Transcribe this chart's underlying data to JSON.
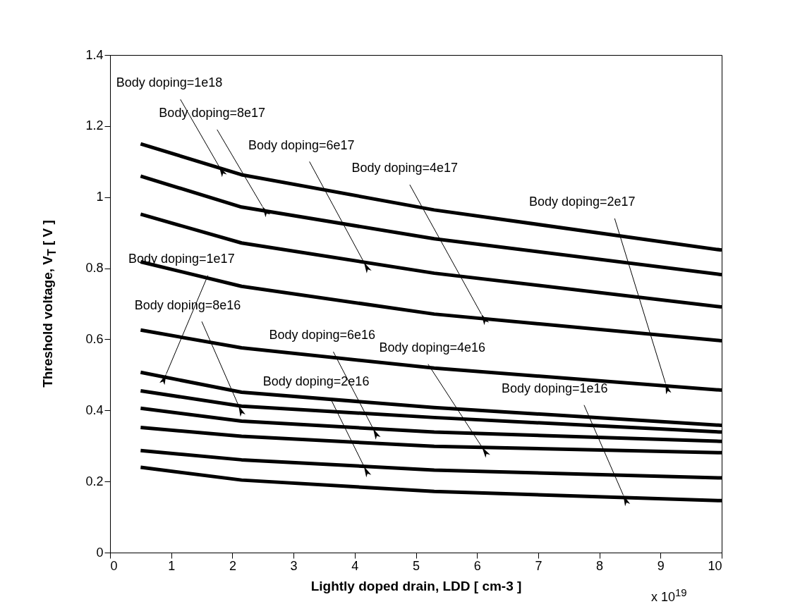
{
  "chart_data": {
    "type": "line",
    "xlabel": "Lightly doped drain, LDD [ cm-3 ]",
    "ylabel": "Threshold voltage, V$_{T}$  [ V ]",
    "x": [
      0.5,
      2.15,
      5.3,
      10
    ],
    "series": [
      {
        "color": "#000000",
        "values": [
          1.15,
          1.063,
          0.964,
          0.851
        ]
      },
      {
        "color": "#000000",
        "values": [
          1.059,
          0.972,
          0.883,
          0.782
        ]
      },
      {
        "color": "#000000",
        "values": [
          0.952,
          0.871,
          0.786,
          0.691
        ]
      },
      {
        "color": "#000000",
        "values": [
          0.818,
          0.749,
          0.671,
          0.596
        ]
      },
      {
        "color": "#000000",
        "values": [
          0.626,
          0.576,
          0.519,
          0.457
        ]
      },
      {
        "color": "#000000",
        "values": [
          0.507,
          0.451,
          0.408,
          0.358
        ]
      },
      {
        "color": "#000000",
        "values": [
          0.455,
          0.412,
          0.38,
          0.339
        ]
      },
      {
        "color": "#000000",
        "values": [
          0.406,
          0.37,
          0.339,
          0.313
        ]
      },
      {
        "color": "#000000",
        "values": [
          0.352,
          0.327,
          0.299,
          0.281
        ]
      },
      {
        "color": "#000000",
        "values": [
          0.287,
          0.261,
          0.232,
          0.21
        ]
      },
      {
        "color": "#000000",
        "values": [
          0.24,
          0.204,
          0.172,
          0.146
        ]
      }
    ],
    "xlim": [
      0,
      10
    ],
    "xticks": [
      0,
      1,
      2,
      3,
      4,
      5,
      6,
      7,
      8,
      9,
      10
    ],
    "ylim": [
      0,
      1.4
    ],
    "yticks": [
      0,
      0.2,
      0.4,
      0.6,
      0.8,
      1,
      1.2,
      1.4
    ],
    "grid": false,
    "legend": false,
    "marker": "none",
    "line_style": "solid",
    "annotations": [
      {
        "text": "Body doping=1e18",
        "x": 1.78,
        "y": 1.087
      },
      {
        "text": "Body doping=8e17",
        "x": 2.49,
        "y": 0.974
      },
      {
        "text": "Body doping=6e17",
        "x": 4.15,
        "y": 0.817
      },
      {
        "text": "Body doping=4e17",
        "x": 6.07,
        "y": 0.671
      },
      {
        "text": "Body doping=2e17",
        "x": 9.08,
        "y": 0.477
      },
      {
        "text": "Body doping=1e17",
        "x": 0.92,
        "y": 0.503
      },
      {
        "text": "Body doping=8e16",
        "x": 2.1,
        "y": 0.414
      },
      {
        "text": "Body doping=6e16",
        "x": 4.3,
        "y": 0.349
      },
      {
        "text": "Body doping=4e16",
        "x": 6.08,
        "y": 0.297
      },
      {
        "text": "Body doping=2e16",
        "x": 4.15,
        "y": 0.243
      },
      {
        "text": "Body doping=1e16",
        "x": 8.39,
        "y": 0.162
      },
      "x 10$^{19}$"
    ]
  }
}
